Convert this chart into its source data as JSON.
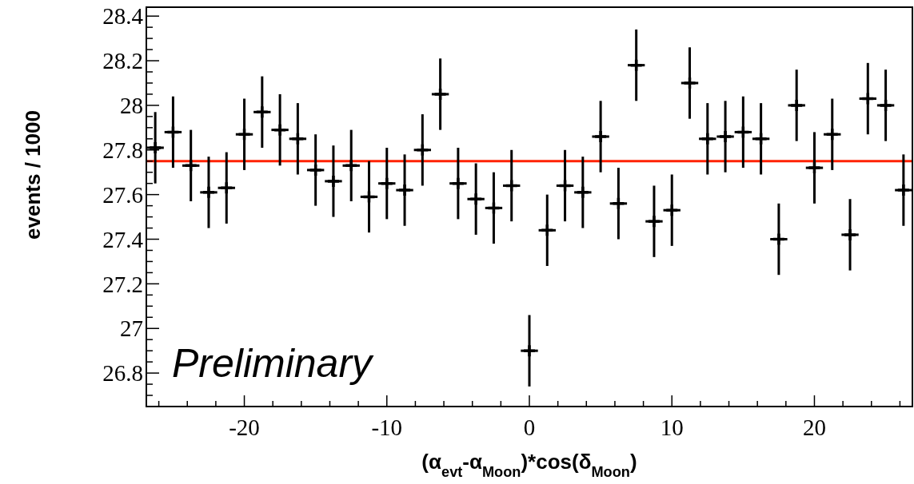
{
  "chart_data": {
    "type": "scatter",
    "xlabel": "(α$_{evt}$-α$_{Moon}$)*cos(δ$_{Moon}$)",
    "ylabel": "events / 1000",
    "annotations": [
      "Preliminary"
    ],
    "marker": "cross",
    "grid": false,
    "xlim": [
      -26.875,
      26.875
    ],
    "xticks": [
      {
        "value": -26,
        "label": null
      },
      {
        "value": -24,
        "label": null
      },
      {
        "value": -22,
        "label": null
      },
      -20,
      {
        "value": -18,
        "label": null
      },
      {
        "value": -16,
        "label": null
      },
      {
        "value": -14,
        "label": null
      },
      {
        "value": -12,
        "label": null
      },
      -10,
      {
        "value": -8,
        "label": null
      },
      {
        "value": -6,
        "label": null
      },
      {
        "value": -4,
        "label": null
      },
      {
        "value": -2,
        "label": null
      },
      0,
      {
        "value": 2,
        "label": null
      },
      {
        "value": 4,
        "label": null
      },
      {
        "value": 6,
        "label": null
      },
      {
        "value": 8,
        "label": null
      },
      10,
      {
        "value": 12,
        "label": null
      },
      {
        "value": 14,
        "label": null
      },
      {
        "value": 16,
        "label": null
      },
      {
        "value": 18,
        "label": null
      },
      20,
      {
        "value": 22,
        "label": null
      },
      {
        "value": 24,
        "label": null
      },
      {
        "value": 26,
        "label": null
      }
    ],
    "ylim": [
      26.65,
      28.44
    ],
    "yticks": [
      {
        "value": 26.7,
        "label": null
      },
      {
        "value": 26.75,
        "label": null
      },
      26.8,
      {
        "value": 26.85,
        "label": null
      },
      {
        "value": 26.9,
        "label": null
      },
      {
        "value": 26.95,
        "label": null
      },
      27,
      {
        "value": 27.05,
        "label": null
      },
      {
        "value": 27.1,
        "label": null
      },
      {
        "value": 27.15,
        "label": null
      },
      27.2,
      {
        "value": 27.25,
        "label": null
      },
      {
        "value": 27.3,
        "label": null
      },
      {
        "value": 27.35,
        "label": null
      },
      27.4,
      {
        "value": 27.45,
        "label": null
      },
      {
        "value": 27.5,
        "label": null
      },
      {
        "value": 27.55,
        "label": null
      },
      27.6,
      {
        "value": 27.65,
        "label": null
      },
      {
        "value": 27.7,
        "label": null
      },
      {
        "value": 27.75,
        "label": null
      },
      27.8,
      {
        "value": 27.85,
        "label": null
      },
      {
        "value": 27.9,
        "label": null
      },
      {
        "value": 27.95,
        "label": null
      },
      28,
      {
        "value": 28.05,
        "label": null
      },
      {
        "value": 28.1,
        "label": null
      },
      {
        "value": 28.15,
        "label": null
      },
      28.2,
      {
        "value": 28.25,
        "label": null
      },
      {
        "value": 28.3,
        "label": null
      },
      {
        "value": 28.35,
        "label": null
      },
      28.4
    ],
    "ref_lines": [
      {
        "axis": "y",
        "value": 27.75,
        "color": "#ff2200"
      }
    ],
    "series": [
      {
        "color": "#000000",
        "x": [
          -26.25,
          -25,
          -23.75,
          -22.5,
          -21.25,
          -20,
          -18.75,
          -17.5,
          -16.25,
          -15,
          -13.75,
          -12.5,
          -11.25,
          -10,
          -8.75,
          -7.5,
          -6.25,
          -5,
          -3.75,
          -2.5,
          -1.25,
          0,
          1.25,
          2.5,
          3.75,
          5,
          6.25,
          7.5,
          8.75,
          10,
          11.25,
          12.5,
          13.75,
          15,
          16.25,
          17.5,
          18.75,
          20,
          21.25,
          22.5,
          23.75,
          25,
          26.25
        ],
        "values": [
          27.81,
          27.88,
          27.73,
          27.61,
          27.63,
          27.87,
          27.97,
          27.89,
          27.85,
          27.71,
          27.66,
          27.73,
          27.59,
          27.65,
          27.62,
          27.8,
          28.05,
          27.65,
          27.58,
          27.54,
          27.64,
          26.9,
          27.44,
          27.64,
          27.61,
          27.86,
          27.56,
          28.18,
          27.48,
          27.53,
          28.1,
          27.85,
          27.86,
          27.88,
          27.85,
          27.4,
          28,
          27.72,
          27.87,
          27.42,
          28.03,
          28,
          27.62
        ],
        "errors": [
          0.16,
          0.16,
          0.16,
          0.16,
          0.16,
          0.16,
          0.16,
          0.16,
          0.16,
          0.16,
          0.16,
          0.16,
          0.16,
          0.16,
          0.16,
          0.16,
          0.16,
          0.16,
          0.16,
          0.16,
          0.16,
          0.16,
          0.16,
          0.16,
          0.16,
          0.16,
          0.16,
          0.16,
          0.16,
          0.16,
          0.16,
          0.16,
          0.16,
          0.16,
          0.16,
          0.16,
          0.16,
          0.16,
          0.16,
          0.16,
          0.16,
          0.16,
          0.16
        ],
        "xerrors": [
          0.6,
          0.6,
          0.6,
          0.6,
          0.6,
          0.6,
          0.6,
          0.6,
          0.6,
          0.6,
          0.6,
          0.6,
          0.6,
          0.6,
          0.6,
          0.6,
          0.6,
          0.6,
          0.6,
          0.6,
          0.6,
          0.6,
          0.6,
          0.6,
          0.6,
          0.6,
          0.6,
          0.6,
          0.6,
          0.6,
          0.6,
          0.6,
          0.6,
          0.6,
          0.6,
          0.6,
          0.6,
          0.6,
          0.6,
          0.6,
          0.6,
          0.6,
          0.6
        ]
      }
    ]
  }
}
